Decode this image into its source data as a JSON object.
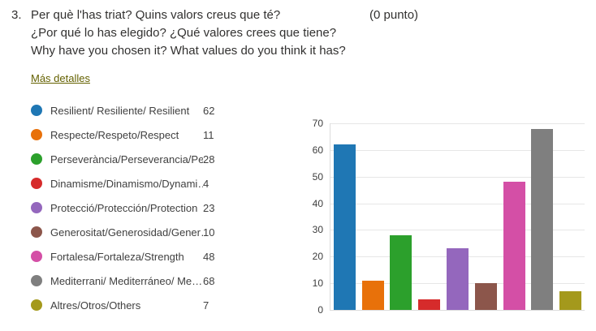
{
  "question": {
    "number": "3.",
    "lines": [
      "Per què l'has triat? Quins valors creus que té?",
      "¿Por qué lo has elegido? ¿Qué valores crees que tiene?",
      "Why have you chosen it? What values do you think it has?"
    ],
    "points": "(0 punto)"
  },
  "more_details_label": "Más detalles",
  "colors": {
    "text": "#323130",
    "legend_text": "#404040",
    "link": "#646100",
    "grid": "#e6e6e6",
    "axis": "#dcdcdc"
  },
  "legend": {
    "items": [
      {
        "label": "Resilient/ Resiliente/ Resilient",
        "count": "62",
        "color": "#1f77b4"
      },
      {
        "label": "Respecte/Respeto/Respect",
        "count": "11",
        "color": "#e8710a"
      },
      {
        "label": "Perseverància/Perseverancia/Per…",
        "count": "28",
        "color": "#2ca02c"
      },
      {
        "label": "Dinamisme/Dinamismo/Dynami…",
        "count": "4",
        "color": "#d62b2b"
      },
      {
        "label": "Protecció/Protección/Protection",
        "count": "23",
        "color": "#9467bd"
      },
      {
        "label": "Generositat/Generosidad/Gener…",
        "count": "10",
        "color": "#8c564b"
      },
      {
        "label": "Fortalesa/Fortaleza/Strength",
        "count": "48",
        "color": "#d44fa6"
      },
      {
        "label": "Mediterrani/ Mediterráneo/ Me…",
        "count": "68",
        "color": "#7f7f7f"
      },
      {
        "label": "Altres/Otros/Others",
        "count": "7",
        "color": "#a4991c"
      }
    ]
  },
  "chart_data": {
    "type": "bar",
    "categories": [
      "Resilient/ Resiliente/ Resilient",
      "Respecte/Respeto/Respect",
      "Perseverància/Perseverancia/Per…",
      "Dinamisme/Dinamismo/Dynami…",
      "Protecció/Protección/Protection",
      "Generositat/Generosidad/Gener…",
      "Fortalesa/Fortaleza/Strength",
      "Mediterrani/ Mediterráneo/ Me…",
      "Altres/Otros/Others"
    ],
    "values": [
      62,
      11,
      28,
      4,
      23,
      10,
      48,
      68,
      7
    ],
    "colors": [
      "#1f77b4",
      "#e8710a",
      "#2ca02c",
      "#d62b2b",
      "#9467bd",
      "#8c564b",
      "#d44fa6",
      "#7f7f7f",
      "#a4991c"
    ],
    "title": "",
    "xlabel": "",
    "ylabel": "",
    "ylim": [
      0,
      70
    ],
    "yticks": [
      0,
      10,
      20,
      30,
      40,
      50,
      60,
      70
    ],
    "grid": true,
    "legend_position": "left"
  }
}
